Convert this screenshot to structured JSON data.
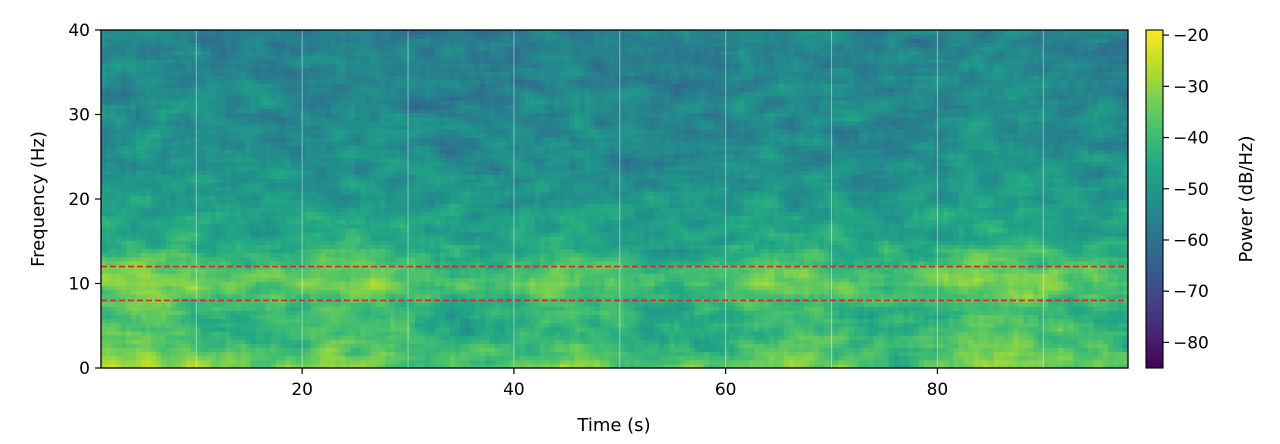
{
  "chart_data": {
    "type": "heatmap",
    "title": "",
    "xlabel": "Time (s)",
    "ylabel": "Frequency (Hz)",
    "xlim": [
      1,
      98
    ],
    "ylim": [
      0,
      40
    ],
    "x_ticks": [
      "20",
      "40",
      "60",
      "80"
    ],
    "x_tick_values": [
      20,
      40,
      60,
      80
    ],
    "y_ticks": [
      "0",
      "10",
      "20",
      "30",
      "40"
    ],
    "y_tick_values": [
      0,
      10,
      20,
      30,
      40
    ],
    "colormap": "viridis",
    "colorbar": {
      "label": "Power (dB/Hz)",
      "range": [
        -85,
        -19
      ],
      "ticks": [
        "−20",
        "−30",
        "−40",
        "−50",
        "−60",
        "−70",
        "−80"
      ],
      "tick_values": [
        -20,
        -30,
        -40,
        -50,
        -60,
        -70,
        -80
      ]
    },
    "band_lines": {
      "color": "#d62728",
      "style": "dashed",
      "y_values": [
        8,
        12
      ]
    },
    "segment_boundaries": {
      "color": "#ffffff",
      "x_values": [
        10,
        20,
        30,
        40,
        50,
        60,
        70,
        80,
        90
      ]
    },
    "power_profile": {
      "frequency_hz": [
        0,
        2,
        4,
        6,
        8,
        10,
        12,
        14,
        18,
        22,
        26,
        30,
        35,
        40
      ],
      "mean_power_db": [
        -34,
        -38,
        -41,
        -43,
        -40,
        -35,
        -38,
        -44,
        -48,
        -51,
        -53,
        -54,
        -55,
        -56
      ]
    }
  }
}
